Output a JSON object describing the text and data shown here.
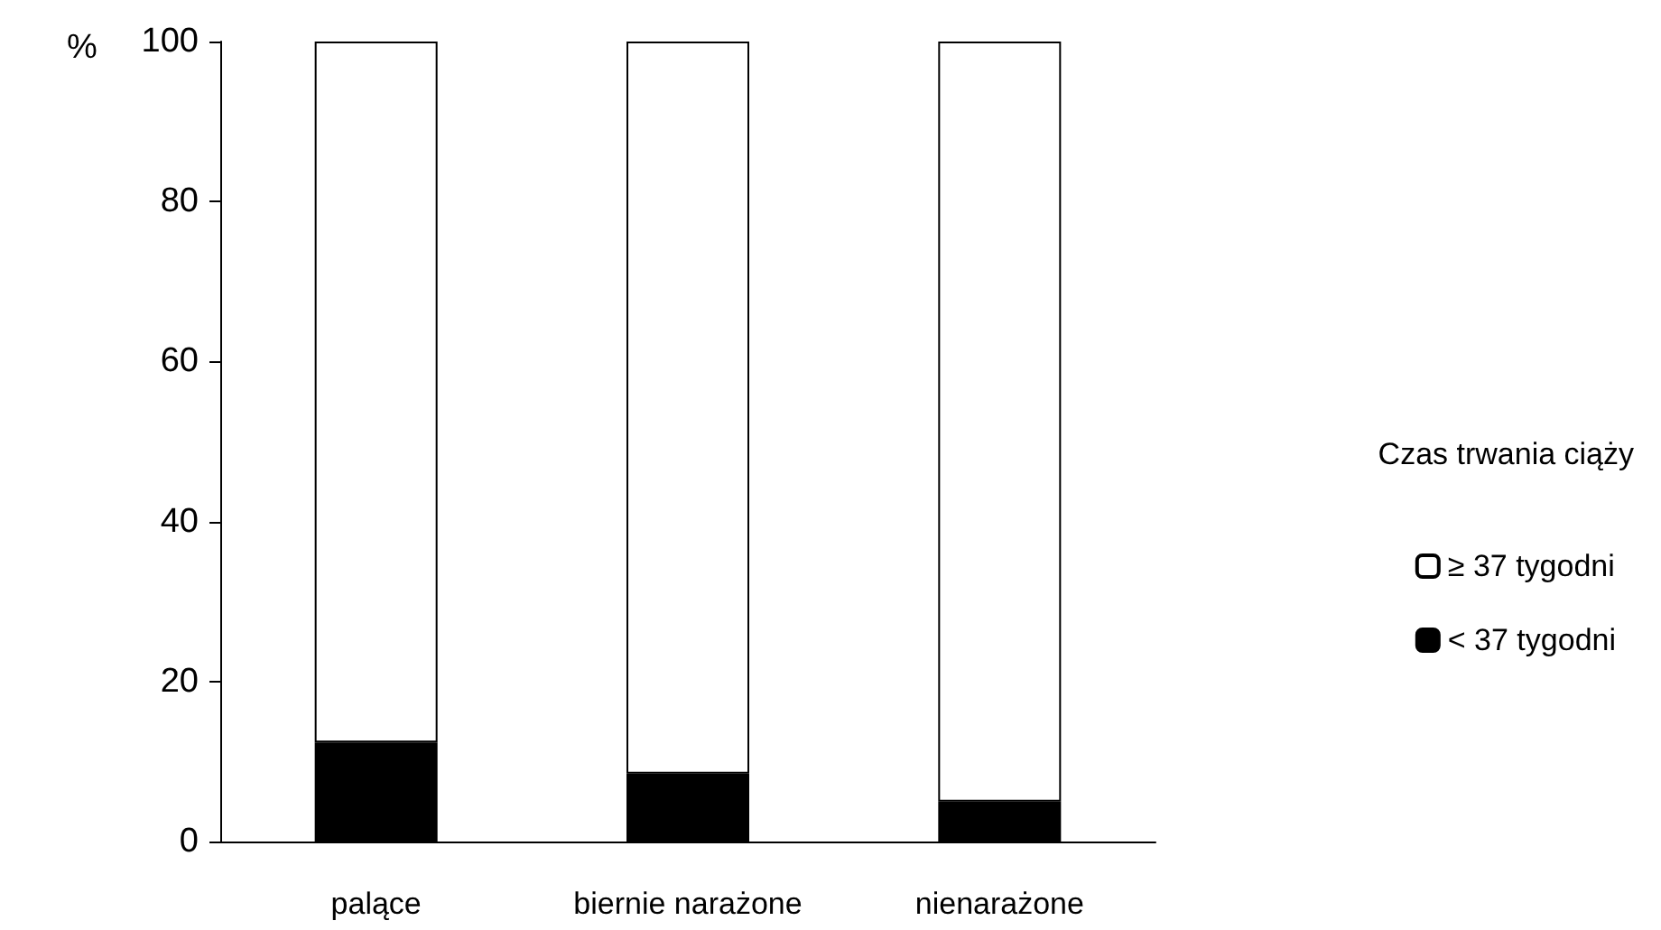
{
  "chart_data": {
    "type": "bar",
    "stacked": true,
    "ylabel": "%",
    "legend_title": "Czas trwania ciąży",
    "categories": [
      "palące",
      "biernie narażone",
      "nienarażone"
    ],
    "series": [
      {
        "name": "< 37 tygodni",
        "color": "#000000",
        "values": [
          12.4,
          8.5,
          5
        ]
      },
      {
        "name": "≥ 37 tygodni",
        "color": "#ffffff",
        "values": [
          87.6,
          91.5,
          95
        ]
      }
    ],
    "ylim": [
      0,
      100
    ],
    "yticks": [
      0,
      20,
      40,
      60,
      80,
      100
    ],
    "grid": false,
    "legend": "right"
  }
}
